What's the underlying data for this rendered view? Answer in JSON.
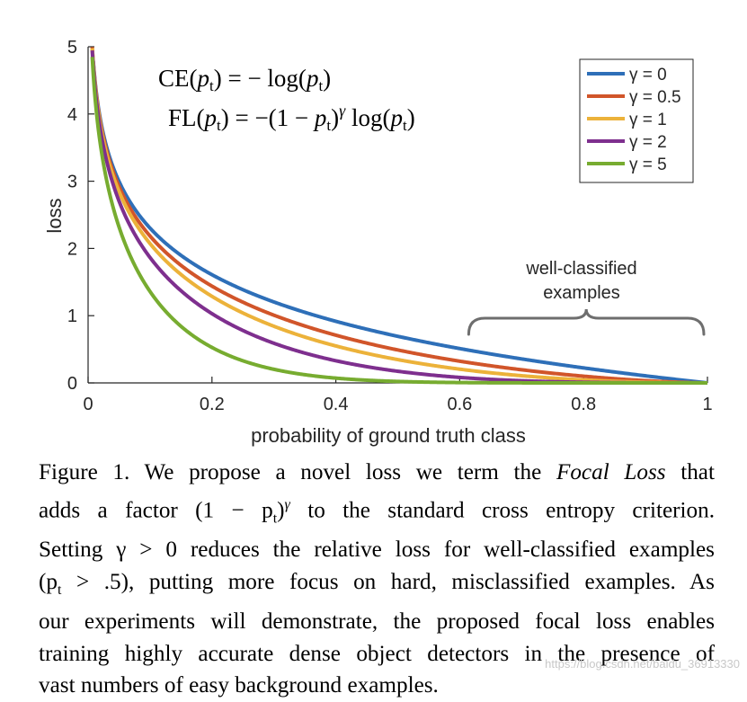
{
  "chart_data": {
    "type": "line",
    "title": "",
    "xlabel": "probability of ground truth class",
    "ylabel": "loss",
    "xlim": [
      0,
      1
    ],
    "ylim": [
      0,
      5
    ],
    "xticks": [
      0,
      0.2,
      0.4,
      0.6,
      0.8,
      1
    ],
    "xtick_labels": [
      "0",
      "0.2",
      "0.4",
      "0.6",
      "0.8",
      "1"
    ],
    "yticks": [
      0,
      1,
      2,
      3,
      4,
      5
    ],
    "ytick_labels": [
      "0",
      "1",
      "2",
      "3",
      "4",
      "5"
    ],
    "grid": false,
    "legend_position": "top-right",
    "function": "FL(p) = -(1-p)^gamma * log(p)",
    "series": [
      {
        "name": "γ = 0",
        "gamma": 0,
        "color": "#2e6fb8"
      },
      {
        "name": "γ = 0.5",
        "gamma": 0.5,
        "color": "#d1552a"
      },
      {
        "name": "γ = 1",
        "gamma": 1,
        "color": "#ecb23a"
      },
      {
        "name": "γ = 2",
        "gamma": 2,
        "color": "#7e2f8e"
      },
      {
        "name": "γ = 5",
        "gamma": 5,
        "color": "#77ac30"
      }
    ],
    "annotations": {
      "ce_formula": {
        "lhs": "CE(",
        "p": "p",
        "sub": "t",
        "mid": ") = − log(",
        "rhs": ")"
      },
      "fl_formula": {
        "lhs": "FL(",
        "p": "p",
        "sub": "t",
        "mid": ") = −(1 − ",
        "pow": "γ",
        "log": " log(",
        "rhs": ")"
      },
      "brace_label_line1": "well-classified",
      "brace_label_line2": "examples",
      "brace_range": [
        0.6,
        1
      ]
    }
  },
  "caption": {
    "line1_a": "Figure 1. We propose a novel loss we term the ",
    "line1_italic": "Focal Loss",
    "line1_b": " that",
    "line2_a": "adds a factor ",
    "line2_math": "(1 − p",
    "line2_sub": "t",
    "line2_math2": ")",
    "line2_sup": "γ",
    "line2_b": " to the standard cross entropy criterion.",
    "line3": "Setting γ > 0 reduces the relative loss for well-classified examples",
    "line4_a": "(p",
    "line4_sub": "t",
    "line4_b": " > .5), putting more focus on hard, misclassified examples. As",
    "line5": "our experiments will demonstrate, the proposed focal loss enables",
    "line6": "training highly accurate dense object detectors in the presence of",
    "line7": "vast numbers of easy background examples."
  },
  "watermark": "https://blog.csdn.net/baidu_36913330"
}
